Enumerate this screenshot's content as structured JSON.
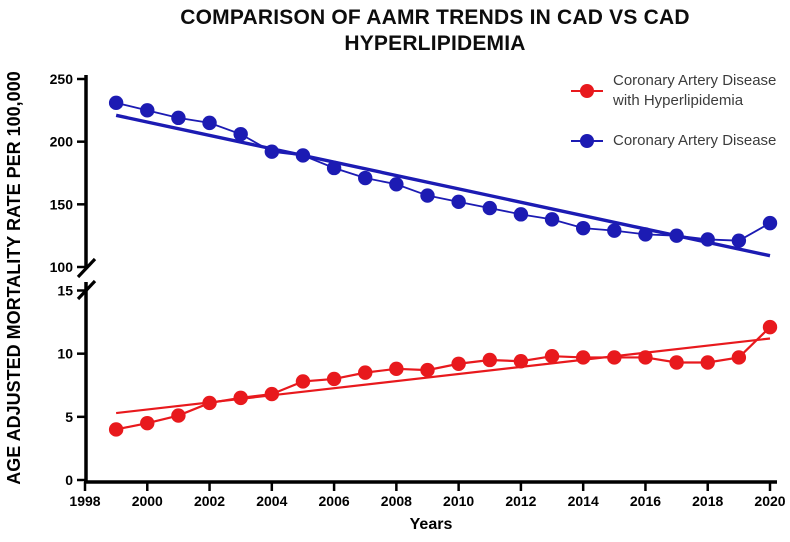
{
  "title": {
    "line1": "COMPARISON OF AAMR TRENDS IN CAD VS CAD",
    "line2": "HYPERLIPIDEMIA"
  },
  "y_axis_label": "AGE ADJUSTED MORTALITY RATE PER 100,000",
  "x_axis_label": "Years",
  "legend": [
    {
      "label": "Coronary Artery Disease with Hyperlipidemia",
      "color": "#e8191d"
    },
    {
      "label": "Coronary Artery Disease",
      "color": "#1c1bb3"
    }
  ],
  "chart_data": {
    "type": "line",
    "title": "COMPARISON OF AAMR TRENDS IN CAD VS CAD HYPERLIPIDEMIA",
    "xlabel": "Years",
    "ylabel": "AGE ADJUSTED MORTALITY RATE PER 100,000",
    "grid": false,
    "legend_position": "top-right-inside",
    "x_range": [
      1998,
      2020
    ],
    "x_ticks": [
      1998,
      2000,
      2002,
      2004,
      2006,
      2008,
      2010,
      2012,
      2014,
      2016,
      2018,
      2020
    ],
    "axis_break": {
      "upper_range": [
        100,
        250
      ],
      "upper_ticks": [
        100,
        150,
        200,
        250
      ],
      "lower_range": [
        0,
        15
      ],
      "lower_ticks": [
        0,
        5,
        10,
        15
      ]
    },
    "years": [
      1999,
      2000,
      2001,
      2002,
      2003,
      2004,
      2005,
      2006,
      2007,
      2008,
      2009,
      2010,
      2011,
      2012,
      2013,
      2014,
      2015,
      2016,
      2017,
      2018,
      2019,
      2020
    ],
    "series": [
      {
        "name": "Coronary Artery Disease with Hyperlipidemia",
        "color": "#e8191d",
        "axis": "lower",
        "values": [
          4.0,
          4.5,
          5.1,
          6.1,
          6.5,
          6.8,
          7.8,
          8.0,
          8.5,
          8.8,
          8.7,
          9.2,
          9.5,
          9.4,
          9.8,
          9.7,
          9.7,
          9.7,
          9.3,
          9.3,
          9.7,
          12.1
        ],
        "trendline": {
          "start_year": 1999,
          "end_year": 2020,
          "start_value": 5.3,
          "end_value": 11.2
        }
      },
      {
        "name": "Coronary Artery Disease",
        "color": "#1c1bb3",
        "axis": "upper",
        "values": [
          231,
          225,
          219,
          215,
          206,
          192,
          189,
          179,
          171,
          166,
          157,
          152,
          147,
          142,
          138,
          131,
          129,
          126,
          125,
          122,
          121,
          135
        ],
        "trendline": {
          "start_year": 1999,
          "end_year": 2020,
          "start_value": 221,
          "end_value": 109
        }
      }
    ]
  }
}
